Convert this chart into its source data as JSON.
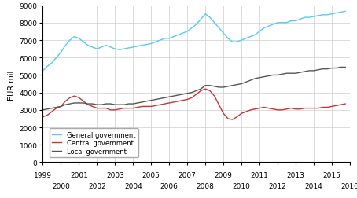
{
  "title": "",
  "ylabel": "EUR mil.",
  "xlim": [
    1999,
    2016
  ],
  "ylim": [
    0,
    9000
  ],
  "yticks": [
    0,
    1000,
    2000,
    3000,
    4000,
    5000,
    6000,
    7000,
    8000,
    9000
  ],
  "xticks_top": [
    1999,
    2001,
    2003,
    2005,
    2007,
    2009,
    2011,
    2013,
    2015
  ],
  "xticks_bottom": [
    2000,
    2002,
    2004,
    2006,
    2008,
    2010,
    2012,
    2014,
    2016
  ],
  "background_color": "#ffffff",
  "grid_color": "#cccccc",
  "colors": {
    "general": "#55ccee",
    "central": "#cc3333",
    "local": "#555555"
  },
  "general_government": {
    "x": [
      1999.0,
      1999.25,
      1999.5,
      1999.75,
      2000.0,
      2000.25,
      2000.5,
      2000.75,
      2001.0,
      2001.25,
      2001.5,
      2001.75,
      2002.0,
      2002.25,
      2002.5,
      2002.75,
      2003.0,
      2003.25,
      2003.5,
      2003.75,
      2004.0,
      2004.25,
      2004.5,
      2004.75,
      2005.0,
      2005.25,
      2005.5,
      2005.75,
      2006.0,
      2006.25,
      2006.5,
      2006.75,
      2007.0,
      2007.25,
      2007.5,
      2007.75,
      2008.0,
      2008.25,
      2008.5,
      2008.75,
      2009.0,
      2009.25,
      2009.5,
      2009.75,
      2010.0,
      2010.25,
      2010.5,
      2010.75,
      2011.0,
      2011.25,
      2011.5,
      2011.75,
      2012.0,
      2012.25,
      2012.5,
      2012.75,
      2013.0,
      2013.25,
      2013.5,
      2013.75,
      2014.0,
      2014.25,
      2014.5,
      2014.75,
      2015.0,
      2015.25,
      2015.5,
      2015.75
    ],
    "y": [
      5250,
      5500,
      5700,
      6000,
      6300,
      6700,
      7000,
      7200,
      7100,
      6900,
      6700,
      6600,
      6500,
      6600,
      6700,
      6600,
      6500,
      6450,
      6500,
      6550,
      6600,
      6650,
      6700,
      6750,
      6800,
      6900,
      7000,
      7100,
      7100,
      7200,
      7300,
      7400,
      7500,
      7700,
      7900,
      8200,
      8500,
      8300,
      8000,
      7700,
      7400,
      7100,
      6900,
      6900,
      7000,
      7100,
      7200,
      7300,
      7500,
      7700,
      7800,
      7900,
      8000,
      8000,
      8000,
      8100,
      8100,
      8200,
      8300,
      8300,
      8350,
      8400,
      8450,
      8450,
      8500,
      8550,
      8600,
      8650
    ]
  },
  "central_government": {
    "x": [
      1999.0,
      1999.25,
      1999.5,
      1999.75,
      2000.0,
      2000.25,
      2000.5,
      2000.75,
      2001.0,
      2001.25,
      2001.5,
      2001.75,
      2002.0,
      2002.25,
      2002.5,
      2002.75,
      2003.0,
      2003.25,
      2003.5,
      2003.75,
      2004.0,
      2004.25,
      2004.5,
      2004.75,
      2005.0,
      2005.25,
      2005.5,
      2005.75,
      2006.0,
      2006.25,
      2006.5,
      2006.75,
      2007.0,
      2007.25,
      2007.5,
      2007.75,
      2008.0,
      2008.25,
      2008.5,
      2008.75,
      2009.0,
      2009.25,
      2009.5,
      2009.75,
      2010.0,
      2010.25,
      2010.5,
      2010.75,
      2011.0,
      2011.25,
      2011.5,
      2011.75,
      2012.0,
      2012.25,
      2012.5,
      2012.75,
      2013.0,
      2013.25,
      2013.5,
      2013.75,
      2014.0,
      2014.25,
      2014.5,
      2014.75,
      2015.0,
      2015.25,
      2015.5,
      2015.75
    ],
    "y": [
      2600,
      2700,
      2900,
      3100,
      3200,
      3500,
      3700,
      3800,
      3700,
      3500,
      3300,
      3200,
      3100,
      3100,
      3100,
      3000,
      3000,
      3050,
      3100,
      3100,
      3100,
      3150,
      3200,
      3200,
      3200,
      3250,
      3300,
      3350,
      3400,
      3450,
      3500,
      3550,
      3600,
      3700,
      3900,
      4100,
      4200,
      4100,
      3800,
      3300,
      2800,
      2500,
      2450,
      2600,
      2800,
      2900,
      3000,
      3050,
      3100,
      3150,
      3100,
      3050,
      3000,
      3000,
      3050,
      3100,
      3050,
      3050,
      3100,
      3100,
      3100,
      3100,
      3150,
      3150,
      3200,
      3250,
      3300,
      3350
    ]
  },
  "local_government": {
    "x": [
      1999.0,
      1999.25,
      1999.5,
      1999.75,
      2000.0,
      2000.25,
      2000.5,
      2000.75,
      2001.0,
      2001.25,
      2001.5,
      2001.75,
      2002.0,
      2002.25,
      2002.5,
      2002.75,
      2003.0,
      2003.25,
      2003.5,
      2003.75,
      2004.0,
      2004.25,
      2004.5,
      2004.75,
      2005.0,
      2005.25,
      2005.5,
      2005.75,
      2006.0,
      2006.25,
      2006.5,
      2006.75,
      2007.0,
      2007.25,
      2007.5,
      2007.75,
      2008.0,
      2008.25,
      2008.5,
      2008.75,
      2009.0,
      2009.25,
      2009.5,
      2009.75,
      2010.0,
      2010.25,
      2010.5,
      2010.75,
      2011.0,
      2011.25,
      2011.5,
      2011.75,
      2012.0,
      2012.25,
      2012.5,
      2012.75,
      2013.0,
      2013.25,
      2013.5,
      2013.75,
      2014.0,
      2014.25,
      2014.5,
      2014.75,
      2015.0,
      2015.25,
      2015.5,
      2015.75
    ],
    "y": [
      3000,
      3050,
      3100,
      3150,
      3200,
      3300,
      3350,
      3400,
      3400,
      3400,
      3350,
      3350,
      3300,
      3300,
      3350,
      3350,
      3300,
      3300,
      3300,
      3350,
      3350,
      3400,
      3450,
      3500,
      3550,
      3600,
      3650,
      3700,
      3750,
      3800,
      3850,
      3900,
      3950,
      4000,
      4100,
      4200,
      4400,
      4400,
      4350,
      4300,
      4300,
      4350,
      4400,
      4450,
      4500,
      4600,
      4700,
      4800,
      4850,
      4900,
      4950,
      5000,
      5000,
      5050,
      5100,
      5100,
      5100,
      5150,
      5200,
      5250,
      5250,
      5300,
      5350,
      5350,
      5400,
      5400,
      5450,
      5450
    ]
  },
  "legend": {
    "general": "General government",
    "central": "Central government",
    "local": "Local government"
  }
}
